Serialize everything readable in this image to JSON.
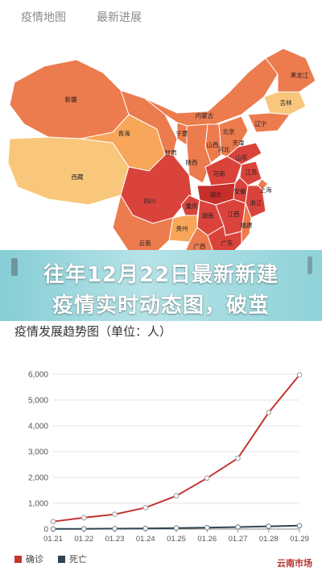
{
  "tabs": [
    {
      "label": "疫情地图"
    },
    {
      "label": "最新进展"
    }
  ],
  "map": {
    "provinces": [
      {
        "name": "黑龙江"
      },
      {
        "name": "吉林"
      },
      {
        "name": "辽宁"
      },
      {
        "name": "内蒙古"
      },
      {
        "name": "新疆"
      },
      {
        "name": "北京"
      },
      {
        "name": "天津"
      },
      {
        "name": "河北"
      },
      {
        "name": "山西"
      },
      {
        "name": "宁夏"
      },
      {
        "name": "甘肃"
      },
      {
        "name": "陕西"
      },
      {
        "name": "山东"
      },
      {
        "name": "青海"
      },
      {
        "name": "河南"
      },
      {
        "name": "江苏"
      },
      {
        "name": "西藏"
      },
      {
        "name": "安徽"
      },
      {
        "name": "上海"
      },
      {
        "name": "湖北"
      },
      {
        "name": "四川"
      },
      {
        "name": "重庆"
      },
      {
        "name": "浙江"
      },
      {
        "name": "湖南"
      },
      {
        "name": "江西"
      },
      {
        "name": "贵州"
      },
      {
        "name": "福建"
      },
      {
        "name": "云南"
      },
      {
        "name": "广西"
      },
      {
        "name": "广东"
      }
    ],
    "colors": {
      "light": "#f7a65a",
      "mid": "#ec7b4e",
      "dark": "#d9433b",
      "deep": "#c62f2b",
      "pale": "#f9c77c"
    }
  },
  "banner": {
    "line1": "往年12月22日最新新建",
    "line2": "疫情实时动态图，破茧"
  },
  "chart_title": "疫情发展趋势图（单位：人）",
  "chart_data": {
    "type": "line",
    "title": "疫情发展趋势图（单位：人）",
    "x": [
      "01.21",
      "01.22",
      "01.23",
      "01.24",
      "01.25",
      "01.26",
      "01.27",
      "01.28",
      "01.29"
    ],
    "y_ticks": [
      "0",
      "1,000",
      "2,000",
      "3,000",
      "4,000",
      "5,000",
      "6,000"
    ],
    "ylim": [
      0,
      6000
    ],
    "grid": true,
    "series": [
      {
        "name": "确诊",
        "color": "#c23531",
        "values": [
          291,
          440,
          571,
          830,
          1287,
          1975,
          2744,
          4515,
          5974
        ]
      },
      {
        "name": "死亡",
        "color": "#2f4554",
        "values": [
          6,
          9,
          17,
          25,
          41,
          56,
          80,
          106,
          132
        ]
      }
    ],
    "legend_position": "bottom-left"
  },
  "legend": [
    {
      "label": "确诊",
      "color": "#c23531"
    },
    {
      "label": "死亡",
      "color": "#2f4554"
    }
  ],
  "watermark": "云南市场"
}
